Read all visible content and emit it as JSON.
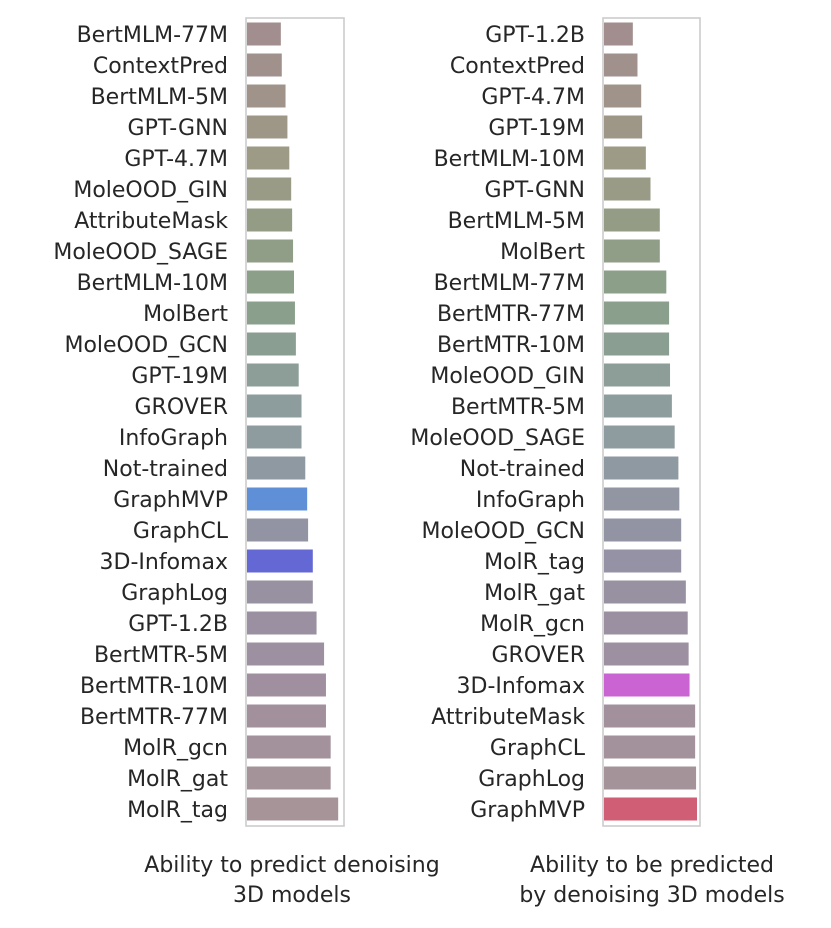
{
  "chart_data": [
    {
      "type": "bar",
      "orientation": "horizontal",
      "title": "",
      "xlabel": [
        "Ability to predict denoising",
        "3D models"
      ],
      "ylabel": "",
      "xlim": [
        0,
        1
      ],
      "categories": [
        "BertMLM-77M",
        "ContextPred",
        "BertMLM-5M",
        "GPT-GNN",
        "GPT-4.7M",
        "MoleOOD_GIN",
        "AttributeMask",
        "MoleOOD_SAGE",
        "BertMLM-10M",
        "MolBert",
        "MoleOOD_GCN",
        "GPT-19M",
        "GROVER",
        "InfoGraph",
        "Not-trained",
        "GraphMVP",
        "GraphCL",
        "3D-Infomax",
        "GraphLog",
        "GPT-1.2B",
        "BertMTR-5M",
        "BertMTR-10M",
        "BertMTR-77M",
        "MolR_gcn",
        "MolR_gat",
        "MolR_tag"
      ],
      "values": [
        0.36,
        0.37,
        0.41,
        0.43,
        0.45,
        0.47,
        0.48,
        0.49,
        0.5,
        0.51,
        0.52,
        0.55,
        0.58,
        0.58,
        0.62,
        0.64,
        0.65,
        0.7,
        0.7,
        0.74,
        0.82,
        0.84,
        0.84,
        0.89,
        0.89,
        0.97
      ],
      "highlighted": {
        "GraphMVP": "#5f8fd6",
        "3D-Infomax": "#6468d4"
      },
      "grid": false
    },
    {
      "type": "bar",
      "orientation": "horizontal",
      "title": "",
      "xlabel": [
        "Ability to be predicted",
        "by denoising 3D models"
      ],
      "ylabel": "",
      "xlim": [
        0,
        1
      ],
      "categories": [
        "GPT-1.2B",
        "ContextPred",
        "GPT-4.7M",
        "GPT-19M",
        "BertMLM-10M",
        "GPT-GNN",
        "BertMLM-5M",
        "MolBert",
        "BertMLM-77M",
        "BertMTR-77M",
        "BertMTR-10M",
        "MoleOOD_GIN",
        "BertMTR-5M",
        "MoleOOD_SAGE",
        "Not-trained",
        "InfoGraph",
        "MoleOOD_GCN",
        "MolR_tag",
        "MolR_gat",
        "MolR_gcn",
        "GROVER",
        "3D-Infomax",
        "AttributeMask",
        "GraphCL",
        "GraphLog",
        "GraphMVP"
      ],
      "values": [
        0.31,
        0.36,
        0.4,
        0.41,
        0.45,
        0.5,
        0.6,
        0.6,
        0.67,
        0.7,
        0.7,
        0.71,
        0.73,
        0.76,
        0.8,
        0.81,
        0.83,
        0.83,
        0.88,
        0.9,
        0.91,
        0.92,
        0.98,
        0.98,
        0.99,
        1.0
      ],
      "highlighted": {
        "3D-Infomax": "#c964d2",
        "GraphMVP": "#d05f75"
      },
      "grid": false
    }
  ]
}
